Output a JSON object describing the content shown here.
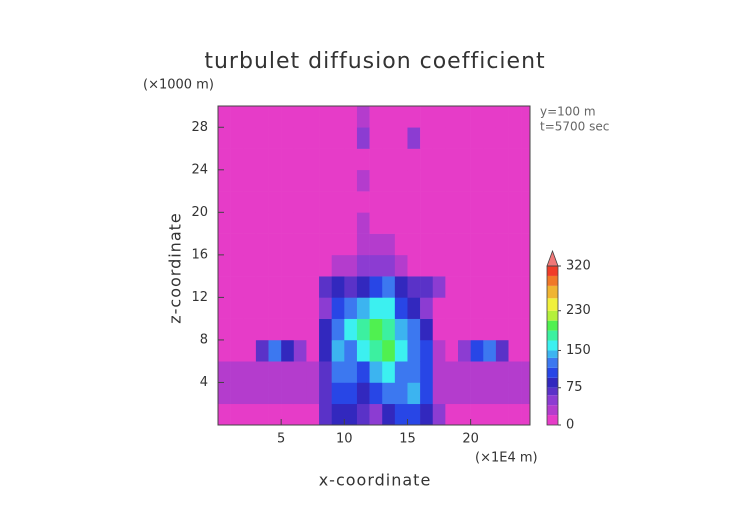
{
  "chart_data": {
    "type": "heatmap",
    "title": "turbulet diffusion coefficient",
    "y_unit": "(×1000 m)",
    "x_unit": "(×1E4 m)",
    "annotations": [
      "y=100 m",
      "t=5700 sec"
    ],
    "xlabel": "x-coordinate",
    "ylabel": "z-coordinate",
    "xlim": [
      0,
      24.7
    ],
    "ylim": [
      0,
      30
    ],
    "xticks": [
      5,
      10,
      15,
      20
    ],
    "yticks": [
      4,
      8,
      12,
      16,
      20,
      24,
      28
    ],
    "xbins": [
      0,
      1,
      2,
      3,
      4,
      5,
      6,
      7,
      8,
      9,
      10,
      11,
      12,
      13,
      14,
      15,
      16,
      17,
      18,
      19,
      20,
      21,
      22,
      23,
      24,
      24.7
    ],
    "ybins": [
      0,
      2,
      4,
      6,
      8,
      10,
      12,
      14,
      16,
      18,
      20,
      22,
      24,
      26,
      28,
      30
    ],
    "values": [
      [
        5,
        5,
        5,
        5,
        5,
        5,
        5,
        5,
        60,
        90,
        80,
        60,
        50,
        80,
        100,
        110,
        90,
        40,
        5,
        5,
        5,
        5,
        5,
        5,
        5
      ],
      [
        20,
        20,
        20,
        20,
        20,
        20,
        20,
        20,
        70,
        110,
        100,
        80,
        100,
        130,
        120,
        140,
        110,
        30,
        20,
        20,
        20,
        20,
        20,
        20,
        20
      ],
      [
        20,
        20,
        20,
        20,
        20,
        20,
        20,
        20,
        60,
        120,
        130,
        110,
        140,
        150,
        130,
        120,
        100,
        20,
        20,
        20,
        20,
        20,
        20,
        20,
        20
      ],
      [
        0,
        0,
        0,
        60,
        120,
        90,
        40,
        0,
        90,
        140,
        120,
        160,
        180,
        190,
        150,
        130,
        110,
        30,
        0,
        50,
        100,
        130,
        60,
        0,
        0
      ],
      [
        0,
        0,
        0,
        0,
        0,
        0,
        0,
        0,
        80,
        130,
        150,
        170,
        200,
        180,
        140,
        120,
        90,
        0,
        0,
        0,
        0,
        0,
        0,
        0,
        0
      ],
      [
        0,
        0,
        0,
        0,
        0,
        0,
        0,
        0,
        50,
        100,
        120,
        140,
        160,
        150,
        110,
        90,
        50,
        0,
        0,
        0,
        0,
        0,
        0,
        0,
        0
      ],
      [
        0,
        0,
        0,
        0,
        0,
        0,
        0,
        0,
        60,
        80,
        60,
        80,
        110,
        120,
        80,
        60,
        70,
        40,
        0,
        0,
        0,
        0,
        0,
        0,
        0
      ],
      [
        0,
        0,
        0,
        0,
        0,
        0,
        0,
        0,
        0,
        30,
        20,
        40,
        50,
        40,
        30,
        0,
        0,
        0,
        0,
        0,
        0,
        0,
        0,
        0,
        0
      ],
      [
        0,
        0,
        0,
        0,
        0,
        0,
        0,
        0,
        0,
        0,
        0,
        20,
        30,
        20,
        0,
        0,
        0,
        0,
        0,
        0,
        0,
        0,
        0,
        0,
        0
      ],
      [
        0,
        0,
        0,
        0,
        0,
        0,
        0,
        0,
        0,
        0,
        0,
        20,
        0,
        0,
        0,
        0,
        0,
        0,
        0,
        0,
        0,
        0,
        0,
        0,
        0
      ],
      [
        0,
        0,
        0,
        0,
        0,
        0,
        0,
        0,
        0,
        0,
        0,
        0,
        0,
        0,
        0,
        0,
        0,
        0,
        0,
        0,
        0,
        0,
        0,
        0,
        0
      ],
      [
        0,
        0,
        0,
        0,
        0,
        0,
        0,
        0,
        0,
        0,
        0,
        30,
        0,
        0,
        0,
        0,
        0,
        0,
        0,
        0,
        0,
        0,
        0,
        0,
        0
      ],
      [
        0,
        0,
        0,
        0,
        0,
        0,
        0,
        0,
        0,
        0,
        0,
        0,
        0,
        0,
        0,
        0,
        0,
        0,
        0,
        0,
        0,
        0,
        0,
        0,
        0
      ],
      [
        0,
        0,
        0,
        0,
        0,
        0,
        0,
        0,
        0,
        0,
        0,
        40,
        0,
        0,
        0,
        40,
        0,
        0,
        0,
        0,
        0,
        0,
        0,
        0,
        0
      ],
      [
        0,
        0,
        0,
        0,
        0,
        0,
        0,
        0,
        0,
        0,
        0,
        20,
        0,
        0,
        0,
        0,
        0,
        0,
        0,
        0,
        0,
        0,
        0,
        0,
        0
      ]
    ],
    "colorbar": {
      "lim": [
        0,
        320
      ],
      "ticks": [
        0,
        75,
        150,
        230,
        320
      ],
      "levels": [
        0,
        20,
        40,
        60,
        75,
        95,
        115,
        135,
        150,
        170,
        190,
        210,
        230,
        255,
        280,
        300,
        320
      ],
      "colors": [
        "#e63cc8",
        "#b43ccd",
        "#8c3cd2",
        "#5a32c8",
        "#3228be",
        "#2846e6",
        "#3c78f0",
        "#3cb4f0",
        "#3cf0f0",
        "#3cf0a0",
        "#50f050",
        "#b4f03c",
        "#f0f03c",
        "#f0b432",
        "#f07828",
        "#f03c28"
      ],
      "over_color": "#f07878"
    }
  }
}
